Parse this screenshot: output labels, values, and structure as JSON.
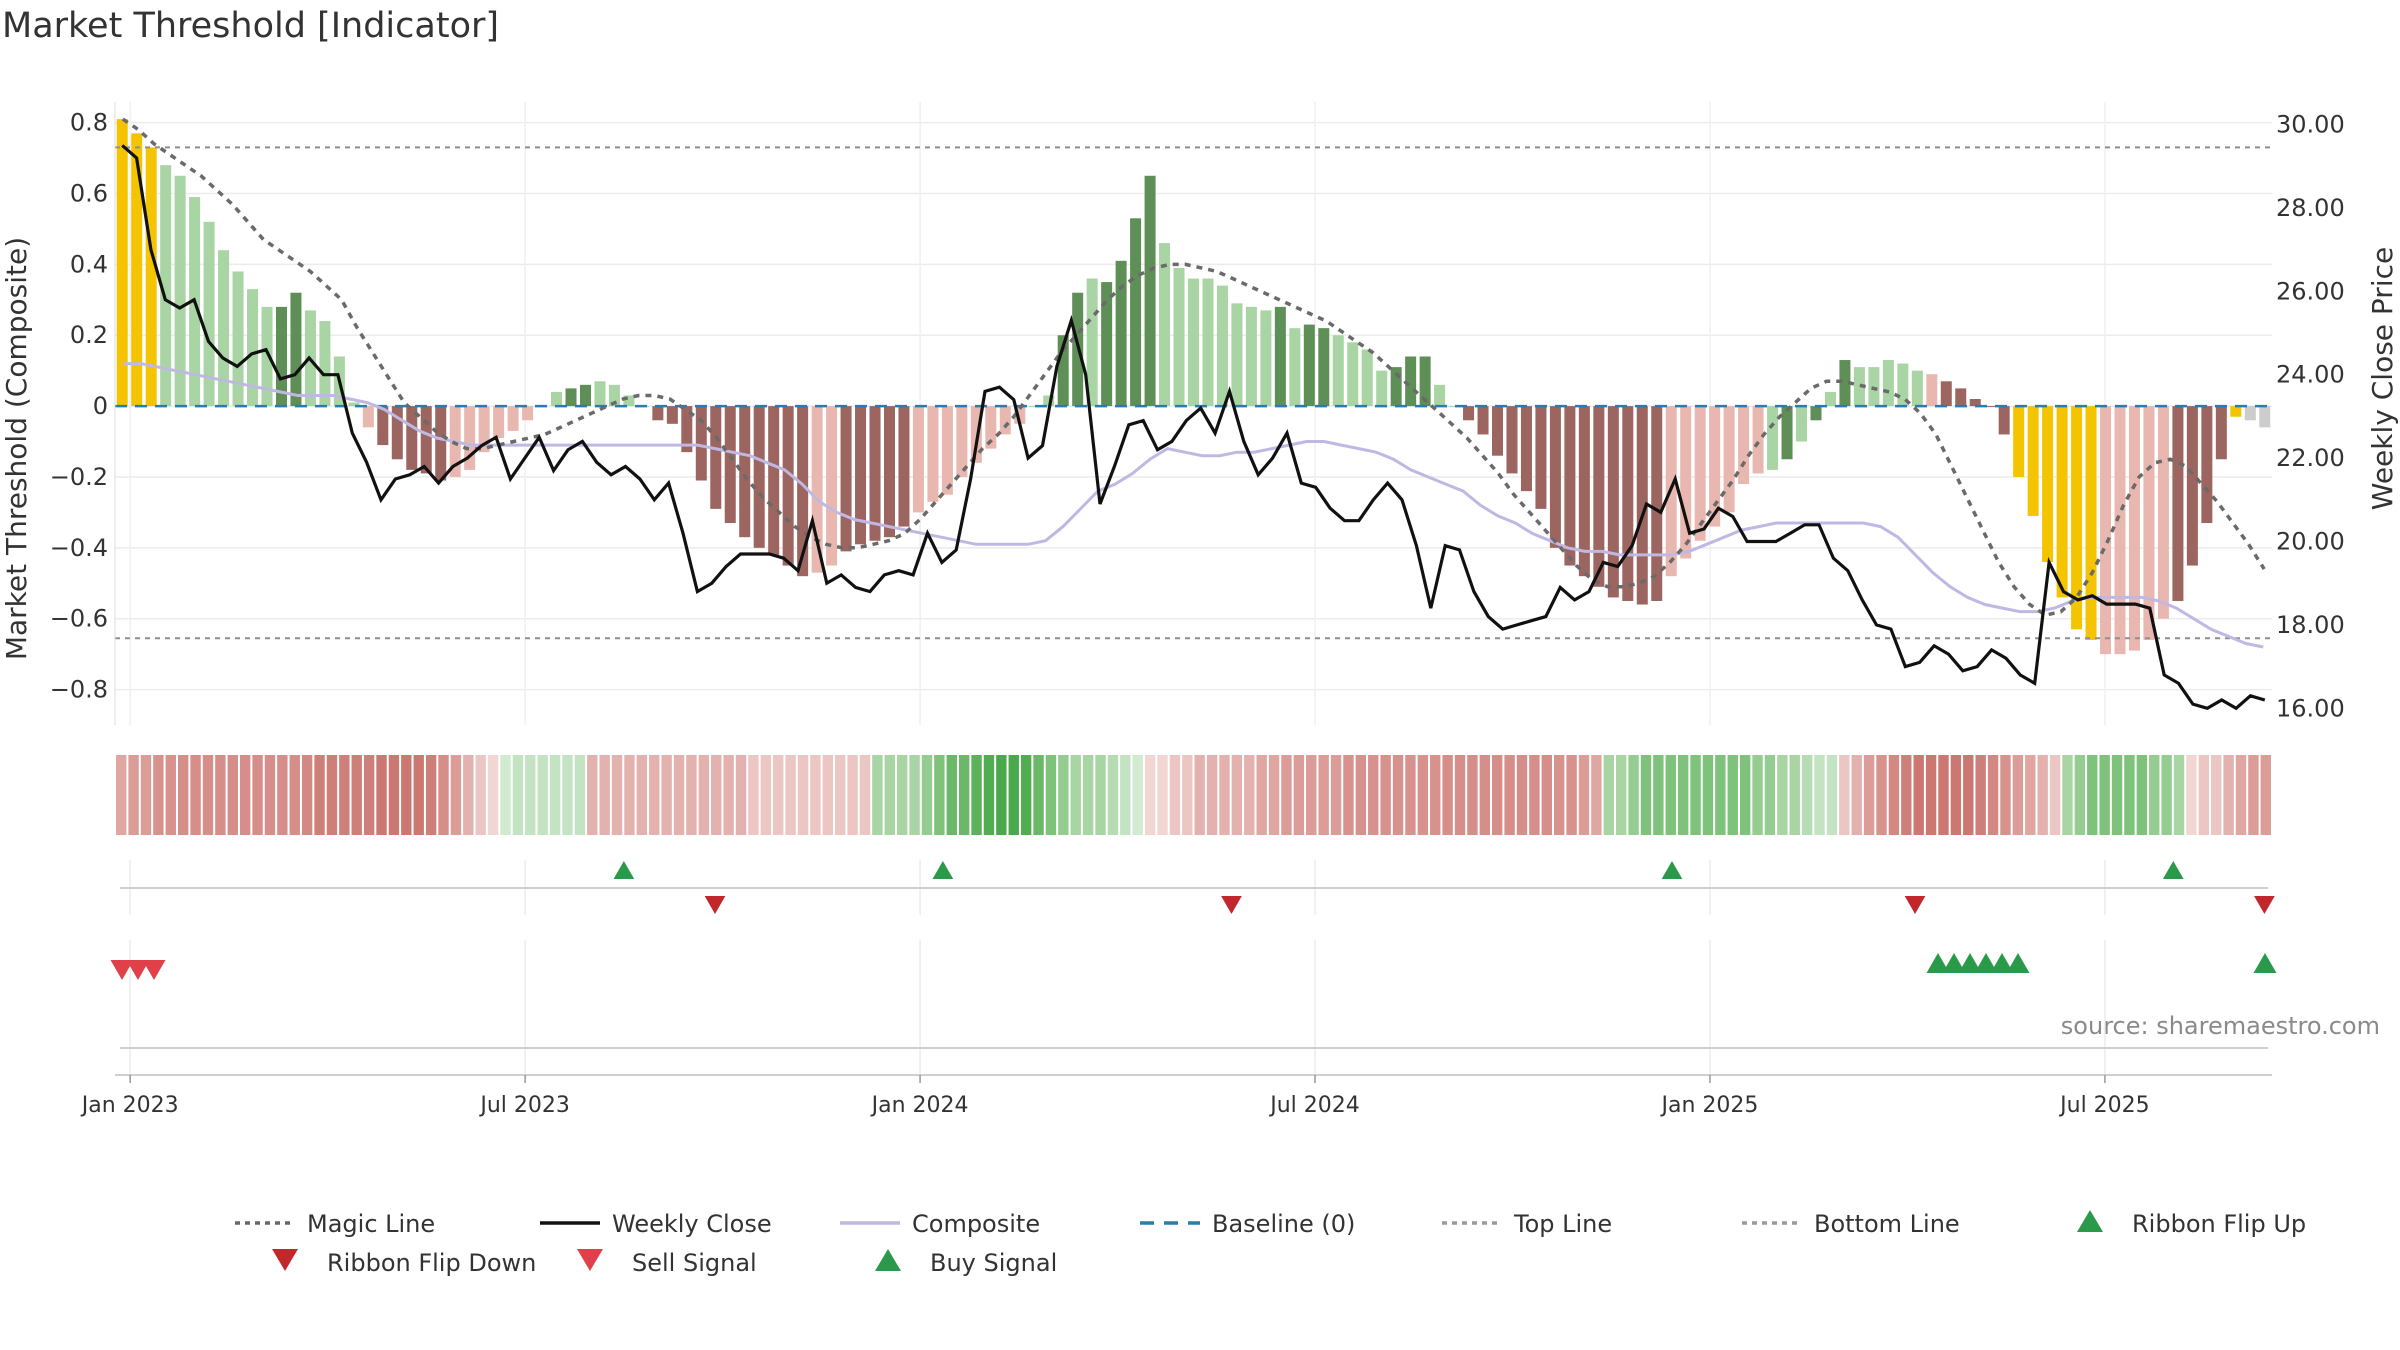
{
  "title": "Market Threshold [Indicator]",
  "source": "source: sharemaestro.com",
  "chart_data": {
    "type": "bar",
    "left_axis": {
      "label": "Market Threshold (Composite)",
      "ticks": [
        "0.8",
        "0.6",
        "0.4",
        "0.2",
        "0",
        "−0.2",
        "−0.4",
        "−0.6",
        "−0.8"
      ],
      "tick_values": [
        0.8,
        0.6,
        0.4,
        0.2,
        0,
        -0.2,
        -0.4,
        -0.6,
        -0.8
      ],
      "ylim": [
        -0.9,
        0.83
      ]
    },
    "right_axis": {
      "label": "Weekly Close Price",
      "ticks": [
        "30.00",
        "28.00",
        "26.00",
        "24.00",
        "22.00",
        "20.00",
        "18.00",
        "16.00"
      ],
      "tick_values": [
        30,
        28,
        26,
        24,
        22,
        20,
        18,
        16
      ],
      "ylim": [
        15.6,
        30.3
      ]
    },
    "x_axis": {
      "ticks": [
        "Jan 2023",
        "Jul 2023",
        "Jan 2024",
        "Jul 2024",
        "Jan 2025",
        "Jul 2025"
      ],
      "tick_weeks": [
        1,
        27,
        53,
        79,
        105,
        131
      ],
      "weeks": 142
    },
    "top_line": 0.73,
    "bottom_line": -0.655,
    "baseline": 0,
    "composite_bars": [
      0.81,
      0.77,
      0.73,
      0.68,
      0.65,
      0.59,
      0.52,
      0.44,
      0.38,
      0.33,
      0.28,
      0.28,
      0.32,
      0.27,
      0.24,
      0.14,
      0.01,
      -0.06,
      -0.11,
      -0.15,
      -0.18,
      -0.19,
      -0.21,
      -0.2,
      -0.18,
      -0.13,
      -0.09,
      -0.07,
      -0.04,
      0,
      0.04,
      0.05,
      0.06,
      0.07,
      0.06,
      0.03,
      0,
      -0.04,
      -0.05,
      -0.13,
      -0.21,
      -0.29,
      -0.33,
      -0.37,
      -0.4,
      -0.42,
      -0.45,
      -0.48,
      -0.47,
      -0.45,
      -0.41,
      -0.39,
      -0.38,
      -0.37,
      -0.34,
      -0.3,
      -0.27,
      -0.25,
      -0.2,
      -0.16,
      -0.12,
      -0.08,
      -0.05,
      0,
      0.03,
      0.2,
      0.32,
      0.36,
      0.35,
      0.41,
      0.53,
      0.65,
      0.46,
      0.39,
      0.36,
      0.36,
      0.34,
      0.29,
      0.28,
      0.27,
      0.28,
      0.22,
      0.23,
      0.22,
      0.2,
      0.18,
      0.16,
      0.1,
      0.11,
      0.14,
      0.14,
      0.06,
      0,
      -0.04,
      -0.08,
      -0.14,
      -0.19,
      -0.24,
      -0.29,
      -0.4,
      -0.45,
      -0.48,
      -0.51,
      -0.54,
      -0.55,
      -0.56,
      -0.55,
      -0.48,
      -0.43,
      -0.38,
      -0.34,
      -0.3,
      -0.22,
      -0.19,
      -0.18,
      -0.15,
      -0.1,
      -0.04,
      0.04,
      0.13,
      0.11,
      0.11,
      0.13,
      0.12,
      0.1,
      0.09,
      0.07,
      0.05,
      0.02,
      0,
      -0.08,
      -0.2,
      -0.31,
      -0.44,
      -0.54,
      -0.63,
      -0.66,
      -0.7,
      -0.7,
      -0.69,
      -0.66,
      -0.6,
      -0.55,
      -0.45,
      -0.33,
      -0.15,
      -0.03,
      -0.04,
      -0.06
    ],
    "bar_colors": [
      "#f5c400",
      "#f5c400",
      "#f5c400",
      "#a8d5a3",
      "#a8d5a3",
      "#a8d5a3",
      "#a8d5a3",
      "#a8d5a3",
      "#a8d5a3",
      "#a8d5a3",
      "#a8d5a3",
      "#5e8f57",
      "#5e8f57",
      "#a8d5a3",
      "#a8d5a3",
      "#a8d5a3",
      "#a8d5a3",
      "#e8b8b0",
      "#9c6560",
      "#9c6560",
      "#9c6560",
      "#9c6560",
      "#9c6560",
      "#e8b8b0",
      "#e8b8b0",
      "#e8b8b0",
      "#e8b8b0",
      "#e8b8b0",
      "#e8b8b0",
      "#a8d5a3",
      "#a8d5a3",
      "#5e8f57",
      "#5e8f57",
      "#a8d5a3",
      "#a8d5a3",
      "#a8d5a3",
      "#a8d5a3",
      "#9c6560",
      "#9c6560",
      "#9c6560",
      "#9c6560",
      "#9c6560",
      "#9c6560",
      "#9c6560",
      "#9c6560",
      "#9c6560",
      "#9c6560",
      "#9c6560",
      "#e8b8b0",
      "#e8b8b0",
      "#9c6560",
      "#9c6560",
      "#9c6560",
      "#9c6560",
      "#9c6560",
      "#e8b8b0",
      "#e8b8b0",
      "#e8b8b0",
      "#e8b8b0",
      "#e8b8b0",
      "#e8b8b0",
      "#e8b8b0",
      "#e8b8b0",
      "#a8d5a3",
      "#a8d5a3",
      "#5e8f57",
      "#5e8f57",
      "#a8d5a3",
      "#5e8f57",
      "#5e8f57",
      "#5e8f57",
      "#5e8f57",
      "#a8d5a3",
      "#a8d5a3",
      "#a8d5a3",
      "#a8d5a3",
      "#a8d5a3",
      "#a8d5a3",
      "#a8d5a3",
      "#a8d5a3",
      "#5e8f57",
      "#a8d5a3",
      "#5e8f57",
      "#5e8f57",
      "#a8d5a3",
      "#a8d5a3",
      "#a8d5a3",
      "#a8d5a3",
      "#5e8f57",
      "#5e8f57",
      "#5e8f57",
      "#a8d5a3",
      "#a8d5a3",
      "#9c6560",
      "#9c6560",
      "#9c6560",
      "#9c6560",
      "#9c6560",
      "#9c6560",
      "#9c6560",
      "#9c6560",
      "#9c6560",
      "#9c6560",
      "#9c6560",
      "#9c6560",
      "#9c6560",
      "#9c6560",
      "#e8b8b0",
      "#e8b8b0",
      "#e8b8b0",
      "#e8b8b0",
      "#e8b8b0",
      "#e8b8b0",
      "#e8b8b0",
      "#a8d5a3",
      "#5e8f57",
      "#a8d5a3",
      "#5e8f57",
      "#a8d5a3",
      "#5e8f57",
      "#a8d5a3",
      "#a8d5a3",
      "#a8d5a3",
      "#a8d5a3",
      "#a8d5a3",
      "#e8b8b0",
      "#9c6560",
      "#9c6560",
      "#9c6560",
      "#9c6560",
      "#9c6560",
      "#f5c400",
      "#f5c400",
      "#f5c400",
      "#f5c400",
      "#f5c400",
      "#f5c400",
      "#e8b8b0",
      "#e8b8b0",
      "#e8b8b0",
      "#e8b8b0",
      "#e8b8b0",
      "#9c6560",
      "#9c6560",
      "#9c6560",
      "#9c6560",
      "#f5c400"
    ],
    "magic_line": [
      0.81,
      0.78,
      0.74,
      0.71,
      0.68,
      0.65,
      0.61,
      0.57,
      0.52,
      0.47,
      0.44,
      0.41,
      0.38,
      0.34,
      0.3,
      0.22,
      0.15,
      0.08,
      0.01,
      -0.03,
      -0.07,
      -0.1,
      -0.12,
      -0.12,
      -0.11,
      -0.1,
      -0.09,
      -0.08,
      -0.06,
      -0.04,
      -0.02,
      0,
      0.02,
      0.03,
      0.03,
      0.02,
      -0.01,
      -0.04,
      -0.09,
      -0.15,
      -0.21,
      -0.26,
      -0.3,
      -0.34,
      -0.37,
      -0.39,
      -0.4,
      -0.4,
      -0.39,
      -0.38,
      -0.36,
      -0.32,
      -0.27,
      -0.22,
      -0.17,
      -0.12,
      -0.08,
      -0.03,
      0.03,
      0.09,
      0.15,
      0.2,
      0.25,
      0.3,
      0.34,
      0.37,
      0.39,
      0.4,
      0.4,
      0.39,
      0.38,
      0.36,
      0.34,
      0.32,
      0.3,
      0.28,
      0.26,
      0.24,
      0.21,
      0.18,
      0.15,
      0.11,
      0.07,
      0.03,
      -0.01,
      -0.05,
      -0.09,
      -0.14,
      -0.19,
      -0.25,
      -0.3,
      -0.35,
      -0.4,
      -0.45,
      -0.49,
      -0.51,
      -0.51,
      -0.5,
      -0.48,
      -0.44,
      -0.39,
      -0.33,
      -0.27,
      -0.21,
      -0.14,
      -0.08,
      -0.03,
      0.01,
      0.05,
      0.07,
      0.07,
      0.06,
      0.05,
      0.04,
      0.02,
      -0.02,
      -0.08,
      -0.17,
      -0.26,
      -0.35,
      -0.44,
      -0.51,
      -0.56,
      -0.59,
      -0.58,
      -0.54,
      -0.47,
      -0.38,
      -0.28,
      -0.2,
      -0.16,
      -0.15,
      -0.17,
      -0.22,
      -0.27,
      -0.33,
      -0.39,
      -0.46
    ],
    "composite_line": [
      0.12,
      0.12,
      0.11,
      0.1,
      0.09,
      0.08,
      0.07,
      0.06,
      0.05,
      0.04,
      0.03,
      0.03,
      0.03,
      0.02,
      0.01,
      -0.01,
      -0.04,
      -0.07,
      -0.09,
      -0.1,
      -0.11,
      -0.11,
      -0.11,
      -0.11,
      -0.11,
      -0.11,
      -0.11,
      -0.11,
      -0.11,
      -0.11,
      -0.11,
      -0.11,
      -0.11,
      -0.11,
      -0.12,
      -0.13,
      -0.14,
      -0.16,
      -0.18,
      -0.22,
      -0.27,
      -0.3,
      -0.32,
      -0.33,
      -0.34,
      -0.35,
      -0.36,
      -0.37,
      -0.38,
      -0.39,
      -0.39,
      -0.39,
      -0.39,
      -0.38,
      -0.34,
      -0.29,
      -0.24,
      -0.22,
      -0.19,
      -0.15,
      -0.12,
      -0.13,
      -0.14,
      -0.14,
      -0.13,
      -0.13,
      -0.12,
      -0.11,
      -0.1,
      -0.1,
      -0.11,
      -0.12,
      -0.13,
      -0.15,
      -0.18,
      -0.2,
      -0.22,
      -0.24,
      -0.28,
      -0.31,
      -0.33,
      -0.36,
      -0.38,
      -0.4,
      -0.41,
      -0.41,
      -0.42,
      -0.42,
      -0.42,
      -0.42,
      -0.41,
      -0.39,
      -0.37,
      -0.35,
      -0.34,
      -0.33,
      -0.33,
      -0.33,
      -0.33,
      -0.33,
      -0.33,
      -0.34,
      -0.37,
      -0.42,
      -0.47,
      -0.51,
      -0.54,
      -0.56,
      -0.57,
      -0.58,
      -0.58,
      -0.57,
      -0.55,
      -0.54,
      -0.54,
      -0.54,
      -0.54,
      -0.55,
      -0.57,
      -0.6,
      -0.63,
      -0.65,
      -0.67,
      -0.68
    ],
    "price": [
      29.5,
      29.2,
      27.0,
      25.8,
      25.6,
      25.8,
      24.8,
      24.4,
      24.2,
      24.5,
      24.6,
      23.9,
      24.0,
      24.4,
      24.0,
      24.0,
      22.6,
      21.9,
      21.0,
      21.5,
      21.6,
      21.8,
      21.4,
      21.8,
      22.0,
      22.3,
      22.5,
      21.5,
      22.0,
      22.5,
      21.7,
      22.2,
      22.4,
      21.9,
      21.6,
      21.8,
      21.5,
      21.0,
      21.4,
      20.2,
      18.8,
      19.0,
      19.4,
      19.7,
      19.7,
      19.7,
      19.6,
      19.3,
      20.5,
      19.0,
      19.2,
      18.9,
      18.8,
      19.2,
      19.3,
      19.2,
      20.2,
      19.5,
      19.8,
      21.5,
      23.6,
      23.7,
      23.4,
      22.0,
      22.3,
      24.2,
      25.3,
      24.0,
      20.9,
      21.8,
      22.8,
      22.9,
      22.2,
      22.4,
      22.9,
      23.2,
      22.6,
      23.6,
      22.4,
      21.6,
      22.0,
      22.6,
      21.4,
      21.3,
      20.8,
      20.5,
      20.5,
      21.0,
      21.4,
      21.0,
      19.9,
      18.4,
      19.9,
      19.8,
      18.8,
      18.2,
      17.9,
      18.0,
      18.1,
      18.2,
      18.9,
      18.6,
      18.8,
      19.5,
      19.4,
      19.9,
      20.9,
      20.7,
      21.5,
      20.2,
      20.3,
      20.8,
      20.6,
      20.0,
      20.0,
      20.0,
      20.2,
      20.4,
      20.4,
      19.6,
      19.3,
      18.6,
      18.0,
      17.9,
      17.0,
      17.1,
      17.5,
      17.3,
      16.9,
      17.0,
      17.4,
      17.2,
      16.8,
      16.6,
      19.5,
      18.8,
      18.6,
      18.7,
      18.5,
      18.5,
      18.5,
      18.4,
      16.8,
      16.6,
      16.1,
      16.0,
      16.2,
      16.0,
      16.3,
      16.2
    ],
    "ribbon_colors": [
      "#e0a6a2",
      "#dc9c98",
      "#dc9c98",
      "#d8928e",
      "#d8928e",
      "#d68e8a",
      "#d68e8a",
      "#d68e8a",
      "#d68e8a",
      "#d68e8a",
      "#d68e8a",
      "#d68e8a",
      "#d68e8a",
      "#d68e8a",
      "#d68e8a",
      "#d38884",
      "#cf7f7a",
      "#cf7f7a",
      "#cf7f7a",
      "#cf7f7a",
      "#cf7f7a",
      "#cc7772",
      "#cc7772",
      "#cc7772",
      "#cc7772",
      "#cf7f7a",
      "#d68e8a",
      "#dc9c98",
      "#e4b2ae",
      "#ebc6c3",
      "#f1d6d4",
      "#d2ead0",
      "#c4e3c2",
      "#c4e3c2",
      "#c4e3c2",
      "#c4e3c2",
      "#c4e3c2",
      "#c4e3c2",
      "#e4b2ae",
      "#e4b2ae",
      "#e4b2ae",
      "#e4b2ae",
      "#e4b2ae",
      "#e4b2ae",
      "#e4b2ae",
      "#e4b2ae",
      "#e4b2ae",
      "#e4b2ae",
      "#e4b2ae",
      "#e4b2ae",
      "#e4b2ae",
      "#ebc6c3",
      "#ebc6c3",
      "#ebc6c3",
      "#ebc6c3",
      "#ebc6c3",
      "#ebc6c3",
      "#ebc6c3",
      "#ebc6c3",
      "#ebc6c3",
      "#ebc6c3",
      "#a8d5a3",
      "#a8d5a3",
      "#a8d5a3",
      "#a8d5a3",
      "#95cc91",
      "#7fc27c",
      "#6bb869",
      "#6bb869",
      "#5cb15a",
      "#52ad51",
      "#4aa94a",
      "#4aa94a",
      "#52ad51",
      "#6bb869",
      "#7fc27c",
      "#95cc91",
      "#a8d5a3",
      "#a8d5a3",
      "#a8d5a3",
      "#b6dcb3",
      "#c4e3c2",
      "#d2ead0",
      "#f1d6d4",
      "#f1d6d4",
      "#ebc6c3",
      "#ebc6c3",
      "#e4b2ae",
      "#e4b2ae",
      "#e4b2ae",
      "#e4b2ae",
      "#e4b2ae",
      "#e0a6a2",
      "#e0a6a2",
      "#dc9c98",
      "#dc9c98",
      "#dc9c98",
      "#dc9c98",
      "#dc9c98",
      "#d8928e",
      "#d8928e",
      "#d8928e",
      "#d8928e",
      "#d8928e",
      "#d8928e",
      "#d8928e",
      "#d8928e",
      "#d68e8a",
      "#d68e8a",
      "#d68e8a",
      "#d68e8a",
      "#d68e8a",
      "#d68e8a",
      "#d68e8a",
      "#d68e8a",
      "#d68e8a",
      "#d8928e",
      "#d8928e",
      "#dc9c98",
      "#e0a6a2",
      "#a8d5a3",
      "#a8d5a3",
      "#95cc91",
      "#7fc27c",
      "#7fc27c",
      "#7fc27c",
      "#7fc27c",
      "#7fc27c",
      "#7fc27c",
      "#7fc27c",
      "#7fc27c",
      "#7fc27c",
      "#95cc91",
      "#95cc91",
      "#a8d5a3",
      "#a8d5a3",
      "#b6dcb3",
      "#c4e3c2",
      "#c4e3c2",
      "#ebc6c3",
      "#e4b2ae",
      "#dc9c98",
      "#d8928e",
      "#d38884",
      "#cf7f7a",
      "#cc7772",
      "#cc7772",
      "#cc7772",
      "#cc7772",
      "#cc7772",
      "#cf7f7a",
      "#d38884",
      "#d8928e",
      "#dc9c98",
      "#e0a6a2",
      "#e4b2ae",
      "#ebc6c3",
      "#a8d5a3",
      "#95cc91",
      "#7fc27c",
      "#7fc27c",
      "#7fc27c",
      "#7fc27c",
      "#7fc27c",
      "#95cc91",
      "#95cc91",
      "#a8d5a3",
      "#f1d6d4",
      "#ebc6c3",
      "#ebc6c3",
      "#e4b2ae",
      "#e0a6a2",
      "#dc9c98",
      "#dc9c98"
    ],
    "ribbon_flip_up": [
      33.5,
      54.5,
      102.5,
      135.5
    ],
    "ribbon_flip_down": [
      39.5,
      73.5,
      118.5,
      141.5
    ],
    "sell_signal": [
      0.2,
      1.2,
      2.2
    ],
    "buy_signal": [
      121.5,
      122.5,
      123.5,
      124.5,
      125.5,
      126.5,
      146.5
    ],
    "legend": [
      {
        "label": "Magic Line",
        "symbol": "dotted-line",
        "color": "#666666"
      },
      {
        "label": "Weekly Close",
        "symbol": "line",
        "color": "#111111"
      },
      {
        "label": "Composite",
        "symbol": "line",
        "color": "#c0b8e3"
      },
      {
        "label": "Baseline (0)",
        "symbol": "dashed-line",
        "color": "#2a7bb0"
      },
      {
        "label": "Top Line",
        "symbol": "dotted-line",
        "color": "#999999"
      },
      {
        "label": "Bottom Line",
        "symbol": "dotted-line",
        "color": "#999999"
      },
      {
        "label": "Ribbon Flip Up",
        "symbol": "triangle-up",
        "color": "#2a9a4a"
      },
      {
        "label": "Ribbon Flip Down",
        "symbol": "triangle-down",
        "color": "#c0282e"
      },
      {
        "label": "Sell Signal",
        "symbol": "triangle-down",
        "color": "#e0404a"
      },
      {
        "label": "Buy Signal",
        "symbol": "triangle-up",
        "color": "#2a9a4a"
      }
    ]
  }
}
